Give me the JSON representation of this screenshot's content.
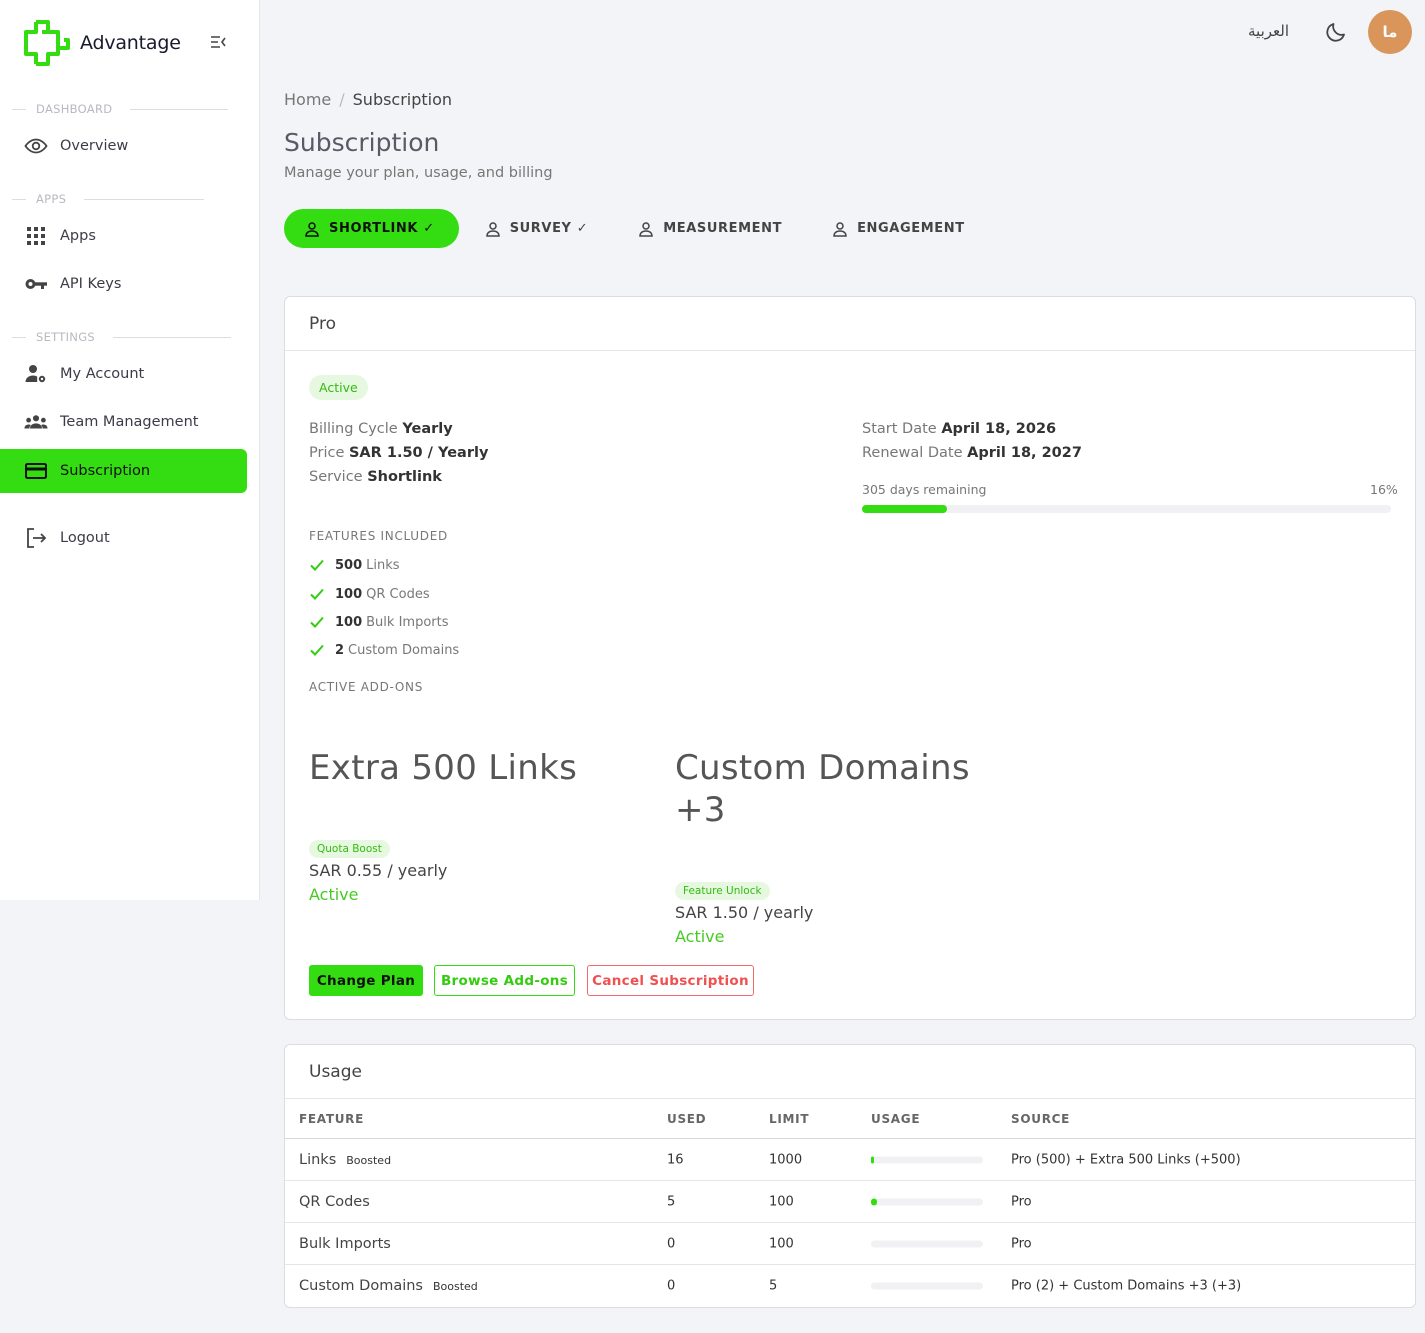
{
  "brand": {
    "name": "Advantage",
    "accent": "#33dd11"
  },
  "sidebar": {
    "sections": {
      "dashboard": "DASHBOARD",
      "apps": "APPS",
      "settings": "SETTINGS"
    },
    "items": [
      {
        "label": "Overview",
        "icon": "eye-icon"
      },
      {
        "label": "Apps",
        "icon": "grid-icon"
      },
      {
        "label": "API Keys",
        "icon": "key-icon"
      },
      {
        "label": "My Account",
        "icon": "user-gear-icon"
      },
      {
        "label": "Team Management",
        "icon": "team-icon"
      },
      {
        "label": "Subscription",
        "icon": "credit-card-icon",
        "active": true
      },
      {
        "label": "Logout",
        "icon": "logout-icon"
      }
    ]
  },
  "topbar": {
    "language": "العربية",
    "avatar_initials": "ما"
  },
  "breadcrumb": {
    "home": "Home",
    "current": "Subscription"
  },
  "page": {
    "title": "Subscription",
    "subtitle": "Manage your plan, usage, and billing"
  },
  "tabs": [
    {
      "label": "SHORTLINK ✓",
      "active": true
    },
    {
      "label": "SURVEY ✓"
    },
    {
      "label": "MEASUREMENT"
    },
    {
      "label": "ENGAGEMENT"
    }
  ],
  "plan": {
    "name": "Pro",
    "status": "Active",
    "billing_cycle_label": "Billing Cycle",
    "billing_cycle": "Yearly",
    "price_label": "Price",
    "price": "SAR 1.50 / Yearly",
    "service_label": "Service",
    "service": "Shortlink",
    "start_label": "Start Date",
    "start_date": "April 18, 2026",
    "renewal_label": "Renewal Date",
    "renewal_date": "April 18, 2027",
    "remaining": "305 days remaining",
    "progress_pct": "16%",
    "progress_fraction": 0.16,
    "features_heading": "FEATURES INCLUDED",
    "features": [
      {
        "count": "500",
        "name": "Links"
      },
      {
        "count": "100",
        "name": "QR Codes"
      },
      {
        "count": "100",
        "name": "Bulk Imports"
      },
      {
        "count": "2",
        "name": "Custom Domains"
      }
    ],
    "addons_heading": "ACTIVE ADD-ONS",
    "addons": [
      {
        "name": "Extra 500 Links",
        "tag": "Quota Boost",
        "price": "SAR 0.55 / yearly",
        "status": "Active"
      },
      {
        "name": "Custom Domains +3",
        "tag": "Feature Unlock",
        "price": "SAR 1.50 / yearly",
        "status": "Active"
      }
    ],
    "buttons": {
      "change": "Change Plan",
      "browse": "Browse Add-ons",
      "cancel": "Cancel Subscription"
    }
  },
  "usage": {
    "title": "Usage",
    "columns": [
      "FEATURE",
      "USED",
      "LIMIT",
      "USAGE",
      "SOURCE"
    ],
    "rows": [
      {
        "feature": "Links",
        "badge": "Boosted",
        "used": "16",
        "limit": "1000",
        "fraction": 0.016,
        "source": "Pro (500) + Extra 500 Links (+500)"
      },
      {
        "feature": "QR Codes",
        "badge": "",
        "used": "5",
        "limit": "100",
        "fraction": 0.05,
        "source": "Pro"
      },
      {
        "feature": "Bulk Imports",
        "badge": "",
        "used": "0",
        "limit": "100",
        "fraction": 0,
        "source": "Pro"
      },
      {
        "feature": "Custom Domains",
        "badge": "Boosted",
        "used": "0",
        "limit": "5",
        "fraction": 0,
        "source": "Pro (2) + Custom Domains +3 (+3)"
      }
    ]
  }
}
